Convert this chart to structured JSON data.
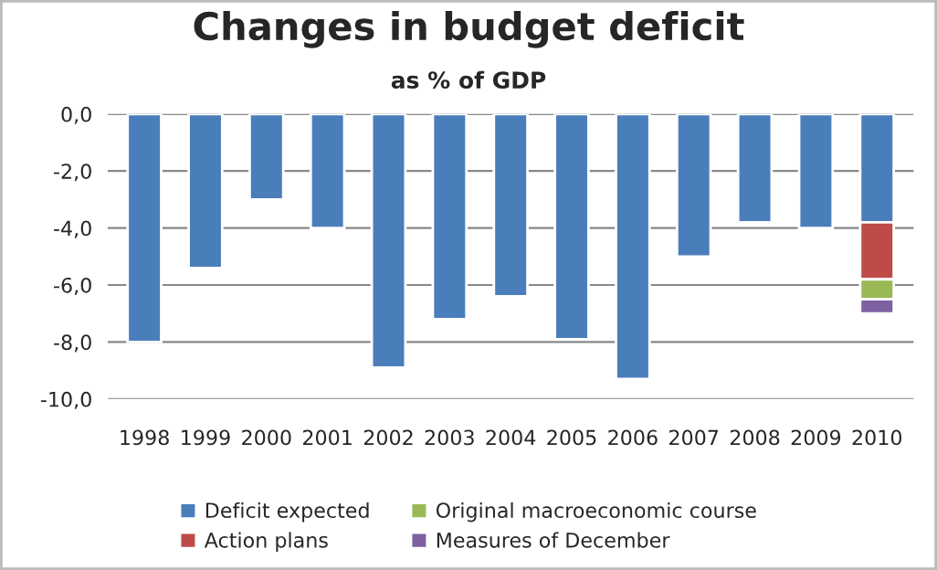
{
  "chart_data": {
    "type": "bar",
    "title": "Changes in budget deficit",
    "subtitle": "as % of GDP",
    "categories": [
      "1998",
      "1999",
      "2000",
      "2001",
      "2002",
      "2003",
      "2004",
      "2005",
      "2006",
      "2007",
      "2008",
      "2009",
      "2010"
    ],
    "stacked": true,
    "series": [
      {
        "name": "Deficit expected",
        "color": "#4a7ebb",
        "values": [
          -8.0,
          -5.4,
          -3.0,
          -4.0,
          -8.9,
          -7.2,
          -6.4,
          -7.9,
          -9.3,
          -5.0,
          -3.8,
          -4.0,
          -3.8
        ]
      },
      {
        "name": "Action plans",
        "color": "#be4b48",
        "values": [
          null,
          null,
          null,
          null,
          null,
          null,
          null,
          null,
          null,
          null,
          null,
          null,
          -2.0
        ]
      },
      {
        "name": "Original macroeconomic course",
        "color": "#98b954",
        "values": [
          null,
          null,
          null,
          null,
          null,
          null,
          null,
          null,
          null,
          null,
          null,
          null,
          -0.7
        ]
      },
      {
        "name": "Measures of December",
        "color": "#7d60a0",
        "values": [
          null,
          null,
          null,
          null,
          null,
          null,
          null,
          null,
          null,
          null,
          null,
          null,
          -0.5
        ]
      }
    ],
    "ylim": [
      -10.0,
      0.0
    ],
    "yticks": [
      {
        "value": -10,
        "label": "-10,0"
      },
      {
        "value": -8,
        "label": "-8,0"
      },
      {
        "value": -6,
        "label": "-6,0"
      },
      {
        "value": -4,
        "label": "-4,0"
      },
      {
        "value": -2,
        "label": "-2,0"
      },
      {
        "value": 0,
        "label": "0,0"
      }
    ],
    "grid": "y",
    "legend": "bottom"
  }
}
